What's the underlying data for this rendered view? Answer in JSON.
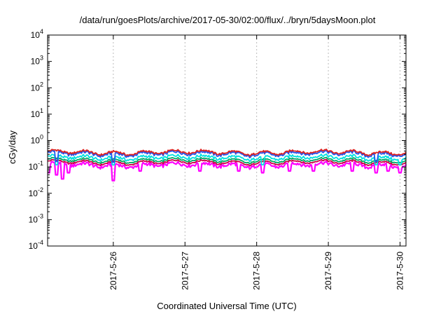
{
  "chart_data": {
    "type": "line",
    "title": "/data/run/goesPlots/archive/2017-05-30/02:00/flux/../bryn/5daysMoon.plot",
    "xlabel": "Coordinated Universal Time (UTC)",
    "ylabel": "cGy/day",
    "x_range": [
      "2017-05-25T02:00",
      "2017-05-30T02:00"
    ],
    "x_ticks": [
      "2017-5-26",
      "2017-5-27",
      "2017-5-28",
      "2017-5-29",
      "2017-5-30"
    ],
    "y_scale": "log",
    "ylim": [
      0.0001,
      10000
    ],
    "y_ticks": [
      {
        "value": 0.0001,
        "base": "10",
        "exp": "-4"
      },
      {
        "value": 0.001,
        "base": "10",
        "exp": "-3"
      },
      {
        "value": 0.01,
        "base": "10",
        "exp": "-2"
      },
      {
        "value": 0.1,
        "base": "10",
        "exp": "-1"
      },
      {
        "value": 1,
        "base": "10",
        "exp": "0"
      },
      {
        "value": 10,
        "base": "10",
        "exp": "1"
      },
      {
        "value": 100,
        "base": "10",
        "exp": "2"
      },
      {
        "value": 1000,
        "base": "10",
        "exp": "3"
      },
      {
        "value": 10000,
        "base": "10",
        "exp": "4"
      }
    ],
    "grid": true,
    "series": [
      {
        "color": "#ff00ff",
        "level": 0.12,
        "noise": 0.3,
        "dips": [
          {
            "x": "2017-05-25T02:20",
            "v": 0.06
          },
          {
            "x": "2017-05-25T05:00",
            "v": 0.05
          },
          {
            "x": "2017-05-25T07:00",
            "v": 0.035
          },
          {
            "x": "2017-05-25T09:00",
            "v": 0.06
          },
          {
            "x": "2017-05-26T00:00",
            "v": 0.03
          },
          {
            "x": "2017-05-26T09:00",
            "v": 0.07
          },
          {
            "x": "2017-05-27T05:00",
            "v": 0.07
          },
          {
            "x": "2017-05-27T18:00",
            "v": 0.07
          },
          {
            "x": "2017-05-28T02:00",
            "v": 0.06
          },
          {
            "x": "2017-05-28T11:00",
            "v": 0.07
          },
          {
            "x": "2017-05-28T19:00",
            "v": 0.07
          },
          {
            "x": "2017-05-29T08:00",
            "v": 0.07
          },
          {
            "x": "2017-05-29T16:00",
            "v": 0.06
          },
          {
            "x": "2017-05-29T20:00",
            "v": 0.07
          },
          {
            "x": "2017-05-30T00:00",
            "v": 0.06
          }
        ]
      },
      {
        "color": "#cc0044",
        "level": 0.15,
        "noise": 0.15,
        "dips": []
      },
      {
        "color": "#00aa66",
        "level": 0.18,
        "noise": 0.15,
        "dips": []
      },
      {
        "color": "#00e0e0",
        "level": 0.23,
        "noise": 0.25,
        "dips": [
          {
            "x": "2017-05-25T05:00",
            "v": 0.12
          },
          {
            "x": "2017-05-26T00:00",
            "v": 0.12
          },
          {
            "x": "2017-05-28T02:00",
            "v": 0.12
          },
          {
            "x": "2017-05-29T16:00",
            "v": 0.12
          },
          {
            "x": "2017-05-30T00:00",
            "v": 0.12
          }
        ]
      },
      {
        "color": "#2255ee",
        "level": 0.32,
        "noise": 0.25,
        "dips": [
          {
            "x": "2017-05-25T05:00",
            "v": 0.16
          },
          {
            "x": "2017-05-26T00:00",
            "v": 0.15
          },
          {
            "x": "2017-05-29T16:00",
            "v": 0.16
          }
        ]
      },
      {
        "color": "#dd2222",
        "level": 0.36,
        "noise": 0.18,
        "dips": []
      }
    ]
  }
}
